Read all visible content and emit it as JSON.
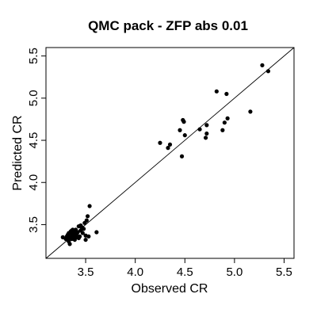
{
  "chart_data": {
    "type": "scatter",
    "title": "QMC pack  -  ZFP abs 0.01",
    "xlabel": "Observed CR",
    "ylabel": "Predicted CR",
    "xlim": [
      3.1,
      5.6
    ],
    "ylim": [
      3.1,
      5.6
    ],
    "x_ticks": [
      "3.5",
      "4.0",
      "4.5",
      "5.0",
      "5.5"
    ],
    "y_ticks": [
      "3.5",
      "4.0",
      "4.5",
      "5.0",
      "5.5"
    ],
    "x_tick_values": [
      3.5,
      4.0,
      4.5,
      5.0,
      5.5
    ],
    "y_tick_values": [
      3.5,
      4.0,
      4.5,
      5.0,
      5.5
    ],
    "grid": false,
    "reference_line": "y = x",
    "points": [
      {
        "x": 3.27,
        "y": 3.35
      },
      {
        "x": 3.3,
        "y": 3.33
      },
      {
        "x": 3.31,
        "y": 3.36
      },
      {
        "x": 3.32,
        "y": 3.38
      },
      {
        "x": 3.33,
        "y": 3.3
      },
      {
        "x": 3.33,
        "y": 3.4
      },
      {
        "x": 3.34,
        "y": 3.27
      },
      {
        "x": 3.34,
        "y": 3.35
      },
      {
        "x": 3.35,
        "y": 3.42
      },
      {
        "x": 3.36,
        "y": 3.33
      },
      {
        "x": 3.36,
        "y": 3.38
      },
      {
        "x": 3.37,
        "y": 3.44
      },
      {
        "x": 3.38,
        "y": 3.36
      },
      {
        "x": 3.38,
        "y": 3.4
      },
      {
        "x": 3.39,
        "y": 3.32
      },
      {
        "x": 3.4,
        "y": 3.38
      },
      {
        "x": 3.4,
        "y": 3.44
      },
      {
        "x": 3.41,
        "y": 3.35
      },
      {
        "x": 3.42,
        "y": 3.41
      },
      {
        "x": 3.43,
        "y": 3.48
      },
      {
        "x": 3.44,
        "y": 3.36
      },
      {
        "x": 3.45,
        "y": 3.43
      },
      {
        "x": 3.46,
        "y": 3.47
      },
      {
        "x": 3.47,
        "y": 3.4
      },
      {
        "x": 3.48,
        "y": 3.45
      },
      {
        "x": 3.49,
        "y": 3.52
      },
      {
        "x": 3.5,
        "y": 3.37
      },
      {
        "x": 3.5,
        "y": 3.32
      },
      {
        "x": 3.51,
        "y": 3.55
      },
      {
        "x": 3.52,
        "y": 3.6
      },
      {
        "x": 3.53,
        "y": 3.36
      },
      {
        "x": 3.54,
        "y": 3.72
      },
      {
        "x": 3.61,
        "y": 3.41
      },
      {
        "x": 3.35,
        "y": 3.34
      },
      {
        "x": 3.37,
        "y": 3.37
      },
      {
        "x": 3.39,
        "y": 3.42
      },
      {
        "x": 3.41,
        "y": 3.39
      },
      {
        "x": 3.43,
        "y": 3.34
      },
      {
        "x": 3.45,
        "y": 3.49
      },
      {
        "x": 3.32,
        "y": 3.32
      },
      {
        "x": 3.36,
        "y": 3.43
      },
      {
        "x": 4.25,
        "y": 4.47
      },
      {
        "x": 4.33,
        "y": 4.41
      },
      {
        "x": 4.35,
        "y": 4.45
      },
      {
        "x": 4.45,
        "y": 4.62
      },
      {
        "x": 4.47,
        "y": 4.31
      },
      {
        "x": 4.48,
        "y": 4.74
      },
      {
        "x": 4.49,
        "y": 4.72
      },
      {
        "x": 4.5,
        "y": 4.56
      },
      {
        "x": 4.65,
        "y": 4.63
      },
      {
        "x": 4.71,
        "y": 4.53
      },
      {
        "x": 4.72,
        "y": 4.58
      },
      {
        "x": 4.72,
        "y": 4.68
      },
      {
        "x": 4.82,
        "y": 5.08
      },
      {
        "x": 4.88,
        "y": 4.62
      },
      {
        "x": 4.9,
        "y": 4.71
      },
      {
        "x": 4.92,
        "y": 5.05
      },
      {
        "x": 4.93,
        "y": 4.76
      },
      {
        "x": 5.16,
        "y": 4.84
      },
      {
        "x": 5.28,
        "y": 5.39
      },
      {
        "x": 5.34,
        "y": 5.32
      }
    ]
  }
}
